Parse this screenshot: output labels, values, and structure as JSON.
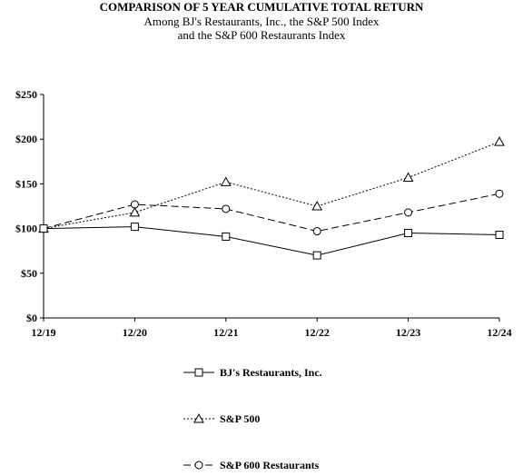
{
  "header": {
    "title": "COMPARISON OF 5 YEAR CUMULATIVE TOTAL RETURN",
    "subtitle_line1": "Among BJ's Restaurants, Inc., the S&P 500 Index",
    "subtitle_line2": "and the S&P 600 Restaurants Index"
  },
  "chart_data": {
    "type": "line",
    "title": "COMPARISON OF 5 YEAR CUMULATIVE TOTAL RETURN",
    "subtitle": "Among BJ's Restaurants, Inc., the S&P 500 Index and the S&P 600 Restaurants Index",
    "x": [
      "12/19",
      "12/20",
      "12/21",
      "12/22",
      "12/23",
      "12/24"
    ],
    "ylim": [
      0,
      250
    ],
    "yticks": [
      0,
      50,
      100,
      150,
      200,
      250
    ],
    "ytick_labels": [
      "$0",
      "$50",
      "$100",
      "$150",
      "$200",
      "$250"
    ],
    "grid": false,
    "legend_position": "bottom",
    "series": [
      {
        "name": "BJ's Restaurants, Inc.",
        "marker": "square",
        "line_style": "solid",
        "color": "#000000",
        "values": [
          100,
          102,
          91,
          70,
          95,
          93
        ]
      },
      {
        "name": "S&P 500",
        "marker": "triangle",
        "line_style": "dotted",
        "color": "#000000",
        "values": [
          100,
          118,
          152,
          125,
          157,
          197
        ]
      },
      {
        "name": "S&P 600 Restaurants",
        "marker": "circle",
        "line_style": "dashed",
        "color": "#000000",
        "values": [
          100,
          127,
          122,
          97,
          118,
          139
        ]
      }
    ]
  }
}
